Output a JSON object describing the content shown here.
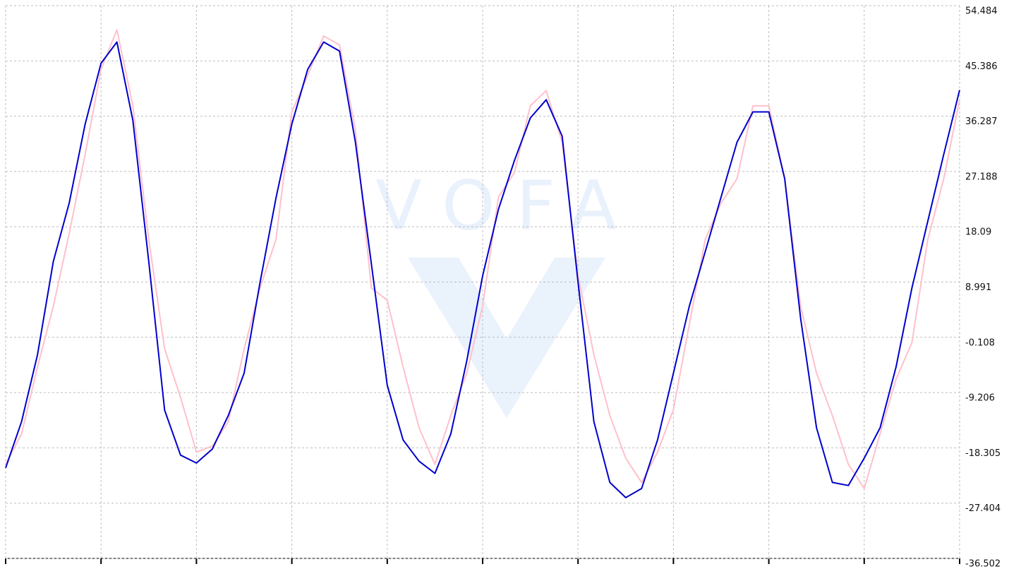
{
  "chart_data": {
    "type": "line",
    "watermark": "VOFA",
    "ylim": [
      -36.502,
      54.484
    ],
    "yticks": [
      54.484,
      45.386,
      36.287,
      27.188,
      18.09,
      8.991,
      -0.108,
      -9.206,
      -18.305,
      -27.404,
      -36.502
    ],
    "grid": true,
    "series": [
      {
        "color": "#ffc0cb",
        "values": [
          -21,
          -16,
          -5,
          5,
          17,
          30,
          44,
          50.5,
          38,
          16,
          -2,
          -10,
          -19,
          -18,
          -14,
          -2,
          8,
          16,
          37,
          43,
          49.5,
          48,
          34,
          8,
          6,
          -5,
          -15,
          -21,
          -13,
          -6,
          5,
          23,
          27,
          38,
          40.5,
          32,
          10,
          -3,
          -13,
          -20,
          -24,
          -19,
          -12,
          2,
          16,
          22,
          26,
          38,
          38,
          26,
          5,
          -6,
          -13,
          -21,
          -25,
          -16,
          -7,
          -1,
          16,
          26,
          39
        ]
      },
      {
        "color": "#0000cc",
        "values": [
          -21.6,
          -14,
          -3,
          12.4,
          22,
          35,
          45,
          48.5,
          35.6,
          12.4,
          -12.1,
          -19.5,
          -20.8,
          -18.5,
          -13,
          -6,
          8.9,
          22.8,
          35,
          44,
          48.5,
          47,
          32,
          12,
          -8,
          -17,
          -20.5,
          -22.5,
          -16,
          -4,
          10,
          21,
          29,
          36,
          39,
          33,
          9,
          -14,
          -24,
          -26.5,
          -25,
          -17,
          -6,
          5,
          14,
          23,
          32,
          37,
          37,
          26,
          3,
          -15,
          -24,
          -24.5,
          -20,
          -15,
          -5,
          8,
          19,
          30,
          40.6
        ]
      }
    ]
  }
}
